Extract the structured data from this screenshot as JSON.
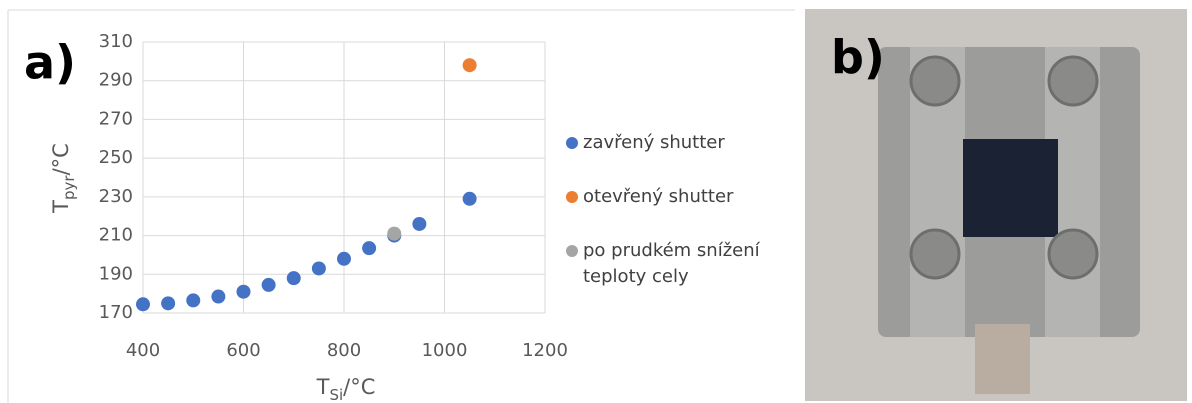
{
  "panels": {
    "a": "a)",
    "b": "b)"
  },
  "chart_data": {
    "type": "scatter",
    "xlabel": {
      "main": "T",
      "sub": "Si",
      "unit": "/°C"
    },
    "ylabel": {
      "main": "T",
      "sub": "pyr",
      "unit": "/°C"
    },
    "xlim": [
      400,
      1200
    ],
    "xticks": [
      400,
      600,
      800,
      1000,
      1200
    ],
    "ylim": [
      170,
      310
    ],
    "yticks": [
      170,
      190,
      210,
      230,
      250,
      270,
      290,
      310
    ],
    "grid": true,
    "legend": "right",
    "series": [
      {
        "name": "zavřený shutter",
        "color": "#4472c4",
        "x": [
          400,
          450,
          500,
          550,
          600,
          650,
          700,
          750,
          800,
          850,
          900,
          950,
          1050
        ],
        "values": [
          174.5,
          175,
          176.5,
          178.5,
          181,
          184.5,
          188,
          193,
          198,
          203.5,
          210,
          216,
          229
        ]
      },
      {
        "name": "otevřený shutter",
        "color": "#ed7d31",
        "x": [
          1050
        ],
        "values": [
          298
        ]
      },
      {
        "name": "po prudkém snížení teploty cely",
        "color": "#a5a5a5",
        "x": [
          900
        ],
        "values": [
          211
        ]
      }
    ]
  }
}
